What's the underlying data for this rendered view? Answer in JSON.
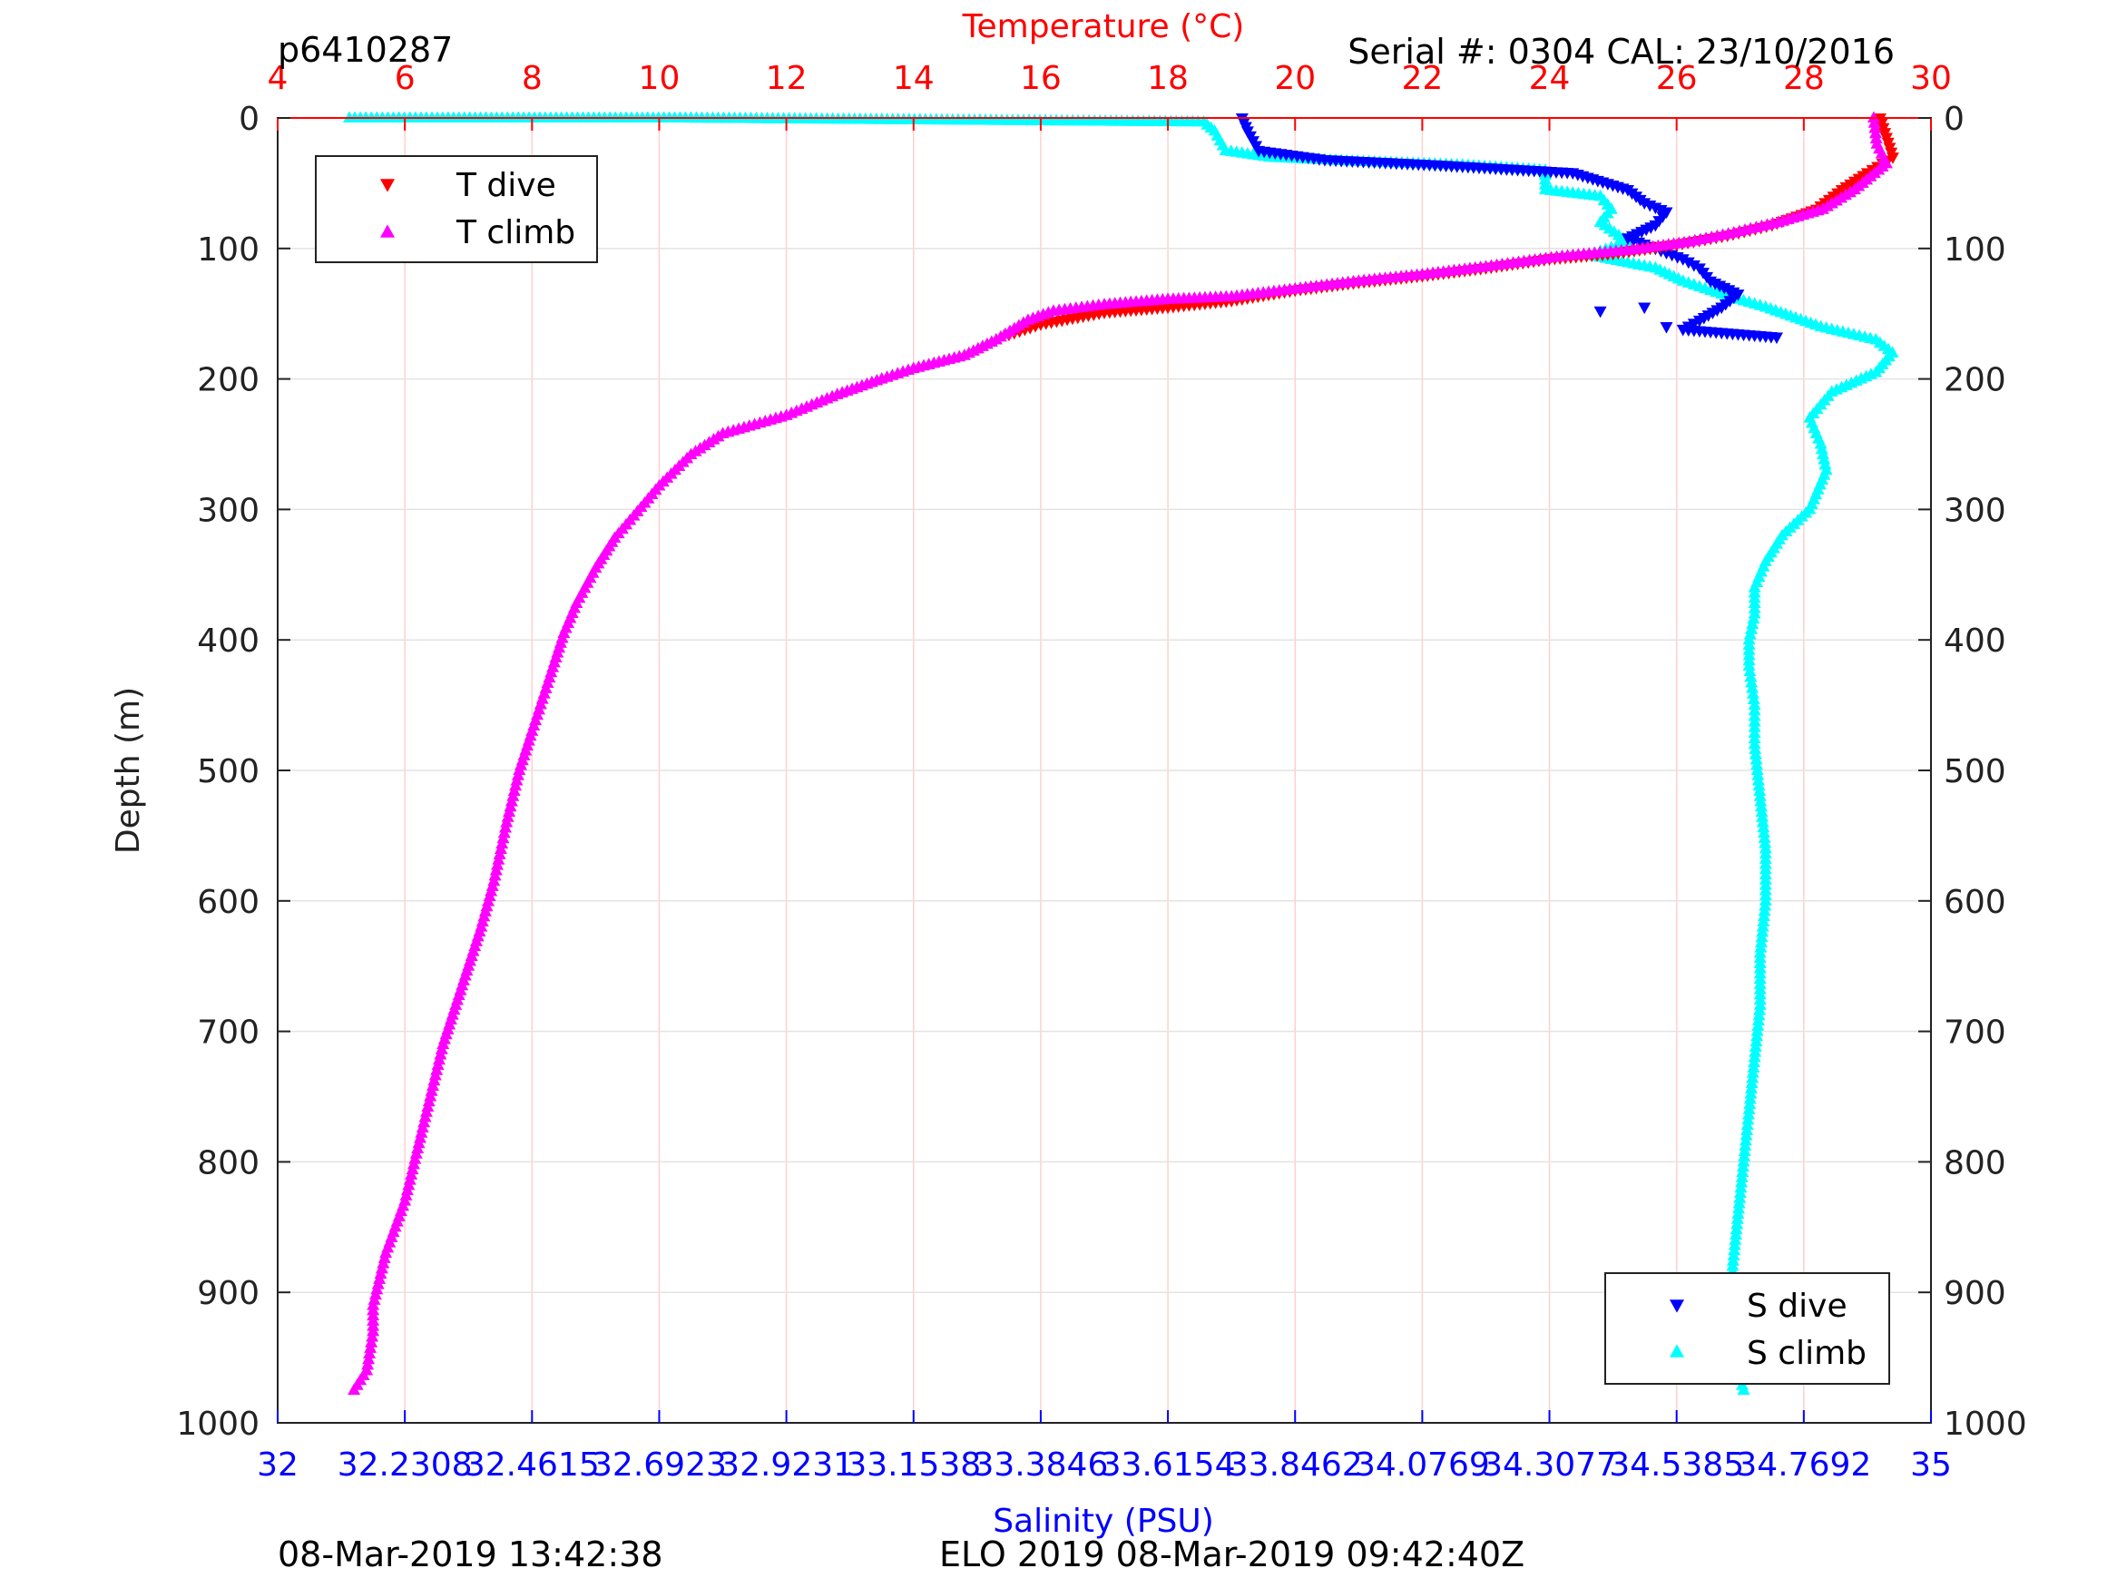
{
  "header": {
    "profile_id": "p6410287",
    "serial": "Serial #: 0304  CAL: 23/10/2016"
  },
  "footer": {
    "left": "08-Mar-2019 13:42:38",
    "center": "ELO 2019 08-Mar-2019 09:42:40Z"
  },
  "colors": {
    "t_dive": "#ff0000",
    "t_climb": "#ff00ff",
    "s_dive": "#0000ff",
    "s_climb": "#00ffff",
    "temp_axis": "#ff0000",
    "sal_axis": "#0000ff"
  },
  "chart_data": {
    "type": "scatter",
    "y_label": "Depth (m)",
    "y_range": [
      0,
      1000
    ],
    "y_reversed": true,
    "y_ticks": [
      "0",
      "100",
      "200",
      "300",
      "400",
      "500",
      "600",
      "700",
      "800",
      "900",
      "1000"
    ],
    "temp_axis": {
      "label": "Temperature (°C)",
      "range": [
        4,
        30
      ],
      "ticks": [
        "4",
        "6",
        "8",
        "10",
        "12",
        "14",
        "16",
        "18",
        "20",
        "22",
        "24",
        "26",
        "28",
        "30"
      ]
    },
    "sal_axis": {
      "label": "Salinity (PSU)",
      "range": [
        32,
        35
      ],
      "ticks": [
        "32",
        "32.2308",
        "32.4615",
        "32.6923",
        "32.9231",
        "33.1538",
        "33.3846",
        "33.6154",
        "33.8462",
        "34.0769",
        "34.3077",
        "34.5385",
        "34.7692",
        "35"
      ]
    },
    "grid": true,
    "legend_temperature": {
      "placement": "top-left",
      "entries": [
        "T dive",
        "T climb"
      ]
    },
    "legend_salinity": {
      "placement": "bottom-right",
      "entries": [
        "S dive",
        "S climb"
      ]
    },
    "series": [
      {
        "name": "T dive",
        "axis": "temperature",
        "marker": "triangle-down",
        "points": [
          [
            29.2,
            0
          ],
          [
            29.3,
            15
          ],
          [
            29.4,
            30
          ],
          [
            29.0,
            42
          ],
          [
            28.6,
            55
          ],
          [
            28.2,
            70
          ],
          [
            27.5,
            82
          ],
          [
            26.8,
            90
          ],
          [
            26.0,
            97
          ],
          [
            25.0,
            104
          ],
          [
            24.0,
            108
          ],
          [
            23.0,
            115
          ],
          [
            22.0,
            121
          ],
          [
            21.0,
            126
          ],
          [
            20.0,
            132
          ],
          [
            19.0,
            140
          ],
          [
            18.0,
            145
          ],
          [
            17.0,
            149
          ],
          [
            16.0,
            158
          ],
          [
            15.5,
            166
          ]
        ]
      },
      {
        "name": "T climb",
        "axis": "temperature",
        "marker": "triangle-up",
        "points": [
          [
            29.1,
            0
          ],
          [
            29.15,
            20
          ],
          [
            29.3,
            35
          ],
          [
            28.8,
            55
          ],
          [
            28.3,
            70
          ],
          [
            27.6,
            80
          ],
          [
            26.9,
            88
          ],
          [
            26.2,
            95
          ],
          [
            25.3,
            101
          ],
          [
            24.2,
            106
          ],
          [
            23.0,
            114
          ],
          [
            22.0,
            120
          ],
          [
            21.0,
            125
          ],
          [
            20.0,
            131
          ],
          [
            19.0,
            137
          ],
          [
            18.0,
            139
          ],
          [
            17.0,
            143
          ],
          [
            16.2,
            148
          ],
          [
            15.8,
            155
          ],
          [
            15.3,
            170
          ],
          [
            14.8,
            182
          ],
          [
            14.0,
            192
          ],
          [
            13.5,
            200
          ],
          [
            12.8,
            212
          ],
          [
            12.0,
            228
          ],
          [
            11.0,
            242
          ],
          [
            10.5,
            258
          ],
          [
            10.0,
            282
          ],
          [
            9.6,
            305
          ],
          [
            9.3,
            322
          ],
          [
            9.0,
            345
          ],
          [
            8.7,
            372
          ],
          [
            8.5,
            395
          ],
          [
            8.3,
            425
          ],
          [
            8.0,
            470
          ],
          [
            7.8,
            500
          ],
          [
            7.6,
            540
          ],
          [
            7.4,
            585
          ],
          [
            7.2,
            620
          ],
          [
            7.0,
            650
          ],
          [
            6.8,
            680
          ],
          [
            6.6,
            710
          ],
          [
            6.4,
            750
          ],
          [
            6.2,
            790
          ],
          [
            6.0,
            830
          ],
          [
            5.7,
            870
          ],
          [
            5.5,
            910
          ],
          [
            5.5,
            930
          ],
          [
            5.4,
            960
          ],
          [
            5.2,
            975
          ]
        ]
      },
      {
        "name": "S dive",
        "axis": "salinity",
        "marker": "triangle-down",
        "points": [
          [
            33.75,
            0
          ],
          [
            33.76,
            10
          ],
          [
            33.78,
            25
          ],
          [
            33.9,
            32
          ],
          [
            34.1,
            36
          ],
          [
            34.35,
            42
          ],
          [
            34.45,
            55
          ],
          [
            34.48,
            65
          ],
          [
            34.52,
            72
          ],
          [
            34.5,
            82
          ],
          [
            34.45,
            92
          ],
          [
            34.5,
            100
          ],
          [
            34.55,
            108
          ],
          [
            34.58,
            115
          ],
          [
            34.6,
            125
          ],
          [
            34.65,
            135
          ],
          [
            34.62,
            145
          ],
          [
            34.58,
            155
          ],
          [
            34.55,
            162
          ],
          [
            34.72,
            168
          ],
          [
            34.4,
            148
          ],
          [
            34.48,
            145
          ],
          [
            34.52,
            160
          ]
        ]
      },
      {
        "name": "S climb",
        "axis": "salinity",
        "marker": "triangle-up",
        "points": [
          [
            32.13,
            0
          ],
          [
            32.2,
            0
          ],
          [
            32.28,
            0
          ],
          [
            32.74,
            0
          ],
          [
            33.68,
            3
          ],
          [
            33.7,
            10
          ],
          [
            33.72,
            25
          ],
          [
            33.8,
            30
          ],
          [
            33.95,
            33
          ],
          [
            34.15,
            36
          ],
          [
            34.3,
            40
          ],
          [
            34.3,
            55
          ],
          [
            34.4,
            60
          ],
          [
            34.42,
            70
          ],
          [
            34.4,
            80
          ],
          [
            34.45,
            95
          ],
          [
            34.38,
            105
          ],
          [
            34.5,
            115
          ],
          [
            34.55,
            125
          ],
          [
            34.62,
            135
          ],
          [
            34.7,
            145
          ],
          [
            34.8,
            160
          ],
          [
            34.9,
            170
          ],
          [
            34.93,
            180
          ],
          [
            34.9,
            195
          ],
          [
            34.82,
            210
          ],
          [
            34.78,
            230
          ],
          [
            34.8,
            250
          ],
          [
            34.81,
            270
          ],
          [
            34.78,
            300
          ],
          [
            34.73,
            320
          ],
          [
            34.7,
            340
          ],
          [
            34.68,
            360
          ],
          [
            34.68,
            380
          ],
          [
            34.67,
            400
          ],
          [
            34.67,
            420
          ],
          [
            34.68,
            450
          ],
          [
            34.68,
            480
          ],
          [
            34.69,
            520
          ],
          [
            34.7,
            560
          ],
          [
            34.7,
            600
          ],
          [
            34.69,
            640
          ],
          [
            34.69,
            680
          ],
          [
            34.68,
            720
          ],
          [
            34.67,
            760
          ],
          [
            34.66,
            800
          ],
          [
            34.65,
            840
          ],
          [
            34.64,
            880
          ],
          [
            34.64,
            920
          ],
          [
            34.65,
            960
          ],
          [
            34.66,
            975
          ]
        ]
      }
    ]
  }
}
